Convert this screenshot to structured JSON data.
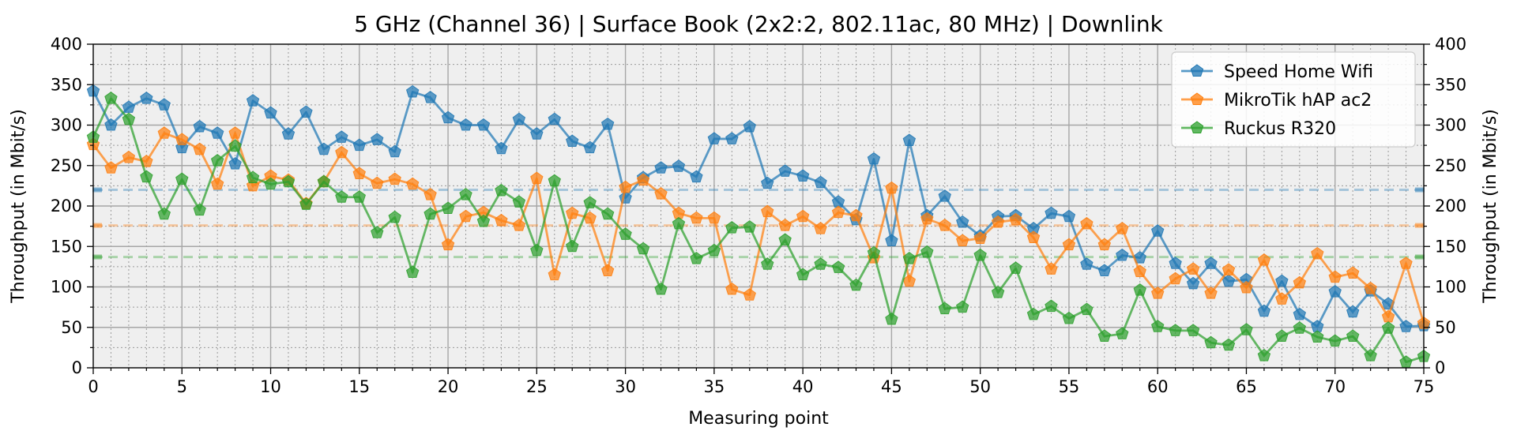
{
  "chart_data": {
    "type": "line",
    "title": "5 GHz (Channel 36) | Surface Book (2x2:2, 802.11ac, 80 MHz) | Downlink",
    "xlabel": "Measuring point",
    "ylabel": "Throughput (in Mbit/s)",
    "ylabel_right": "Throughput (in Mbit/s)",
    "xlim": [
      0,
      75
    ],
    "ylim": [
      0,
      400
    ],
    "xticks": [
      0,
      5,
      10,
      15,
      20,
      25,
      30,
      35,
      40,
      45,
      50,
      55,
      60,
      65,
      70,
      75
    ],
    "yticks": [
      0,
      50,
      100,
      150,
      200,
      250,
      300,
      350,
      400
    ],
    "grid": true,
    "legend_position": "top-right",
    "marker": "pentagon",
    "series": [
      {
        "name": "Speed Home Wifi",
        "color": "#1f77b4",
        "mean": 220,
        "values": [
          342,
          300,
          322,
          333,
          325,
          272,
          298,
          290,
          252,
          330,
          315,
          289,
          316,
          270,
          285,
          275,
          282,
          267,
          341,
          334,
          309,
          300,
          300,
          271,
          307,
          289,
          307,
          280,
          272,
          301,
          210,
          235,
          247,
          249,
          236,
          283,
          283,
          298,
          228,
          243,
          237,
          229,
          205,
          183,
          258,
          157,
          281,
          188,
          212,
          180,
          163,
          187,
          188,
          172,
          191,
          187,
          128,
          120,
          139,
          136,
          169,
          129,
          104,
          129,
          107,
          109,
          70,
          107,
          66,
          51,
          94,
          69,
          95,
          79,
          51,
          52
        ]
      },
      {
        "name": "MikroTik hAP ac2",
        "color": "#ff7f0e",
        "mean": 176,
        "values": [
          276,
          247,
          260,
          255,
          290,
          282,
          270,
          227,
          290,
          225,
          237,
          232,
          203,
          230,
          266,
          240,
          228,
          233,
          227,
          214,
          152,
          187,
          192,
          182,
          176,
          234,
          115,
          191,
          185,
          120,
          223,
          232,
          215,
          191,
          185,
          185,
          97,
          90,
          193,
          176,
          187,
          172,
          192,
          188,
          136,
          222,
          107,
          184,
          176,
          157,
          160,
          180,
          183,
          161,
          122,
          152,
          178,
          152,
          172,
          119,
          92,
          110,
          122,
          92,
          121,
          99,
          133,
          85,
          105,
          141,
          112,
          117,
          98,
          63,
          129,
          55
        ]
      },
      {
        "name": "Ruckus R320",
        "color": "#2ca02c",
        "mean": 137,
        "values": [
          285,
          333,
          307,
          236,
          190,
          233,
          195,
          256,
          274,
          235,
          227,
          230,
          202,
          230,
          211,
          211,
          167,
          186,
          118,
          190,
          197,
          214,
          181,
          219,
          205,
          145,
          231,
          150,
          204,
          190,
          165,
          147,
          97,
          178,
          135,
          145,
          173,
          174,
          128,
          158,
          115,
          128,
          124,
          102,
          142,
          60,
          135,
          143,
          73,
          75,
          139,
          93,
          123,
          66,
          76,
          61,
          72,
          39,
          42,
          96,
          51,
          46,
          46,
          31,
          28,
          47,
          15,
          39,
          49,
          38,
          33,
          39,
          15,
          49,
          7,
          14
        ]
      }
    ]
  }
}
